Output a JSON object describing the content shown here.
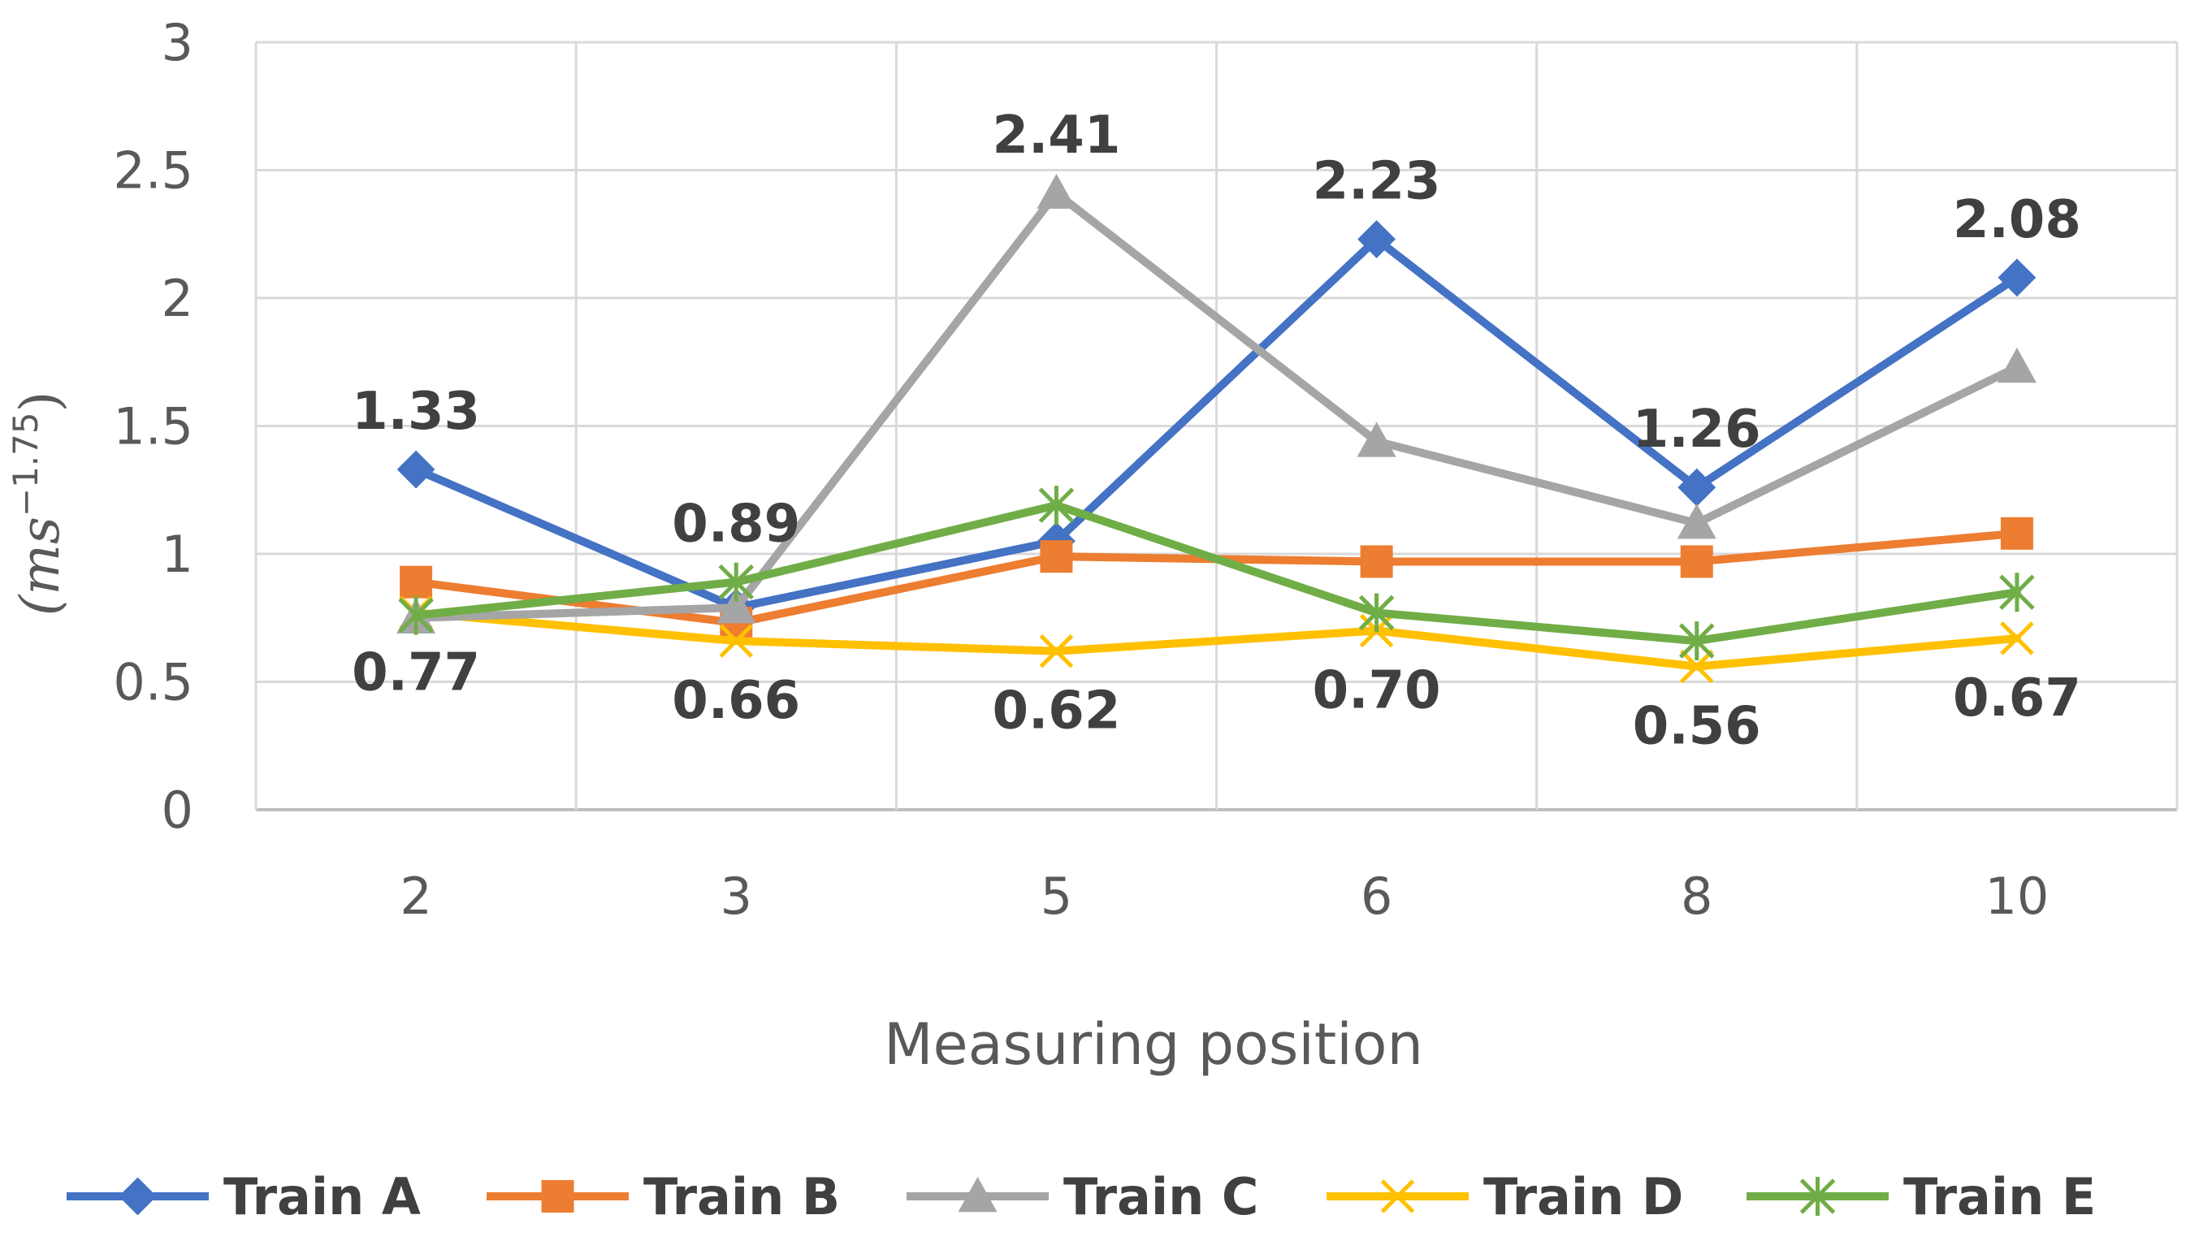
{
  "chart_data": {
    "type": "line",
    "title": "",
    "xlabel": "Measuring position",
    "ylabel": {
      "main": "(ms",
      "exponent": "−1.75",
      "close": ")"
    },
    "categories": [
      "2",
      "3",
      "5",
      "6",
      "8",
      "10"
    ],
    "ylim": [
      0,
      3
    ],
    "yticks": [
      0,
      0.5,
      1,
      1.5,
      2,
      2.5,
      3
    ],
    "ytick_labels": [
      "0",
      "0.5",
      "1",
      "1.5",
      "2",
      "2.5",
      "3"
    ],
    "grid": true,
    "legend_position": "bottom",
    "series": [
      {
        "name": "Train A",
        "color": "#4472C4",
        "marker": "diamond",
        "values": [
          1.33,
          0.79,
          1.05,
          2.23,
          1.26,
          2.08
        ]
      },
      {
        "name": "Train B",
        "color": "#ED7D31",
        "marker": "square",
        "values": [
          0.89,
          0.73,
          0.99,
          0.97,
          0.97,
          1.08
        ]
      },
      {
        "name": "Train C",
        "color": "#A5A5A5",
        "marker": "triangle",
        "values": [
          0.75,
          0.79,
          2.41,
          1.44,
          1.12,
          1.73
        ]
      },
      {
        "name": "Train D",
        "color": "#FFC000",
        "marker": "x",
        "values": [
          0.77,
          0.66,
          0.62,
          0.7,
          0.56,
          0.67
        ]
      },
      {
        "name": "Train E",
        "color": "#70AD47",
        "marker": "star",
        "values": [
          0.76,
          0.89,
          1.19,
          0.77,
          0.66,
          0.85
        ]
      }
    ],
    "annotations": [
      {
        "text": "1.33",
        "x": "2",
        "series": "Train A",
        "place": "above"
      },
      {
        "text": "0.89",
        "x": "3",
        "series": "Train E",
        "place": "above"
      },
      {
        "text": "2.41",
        "x": "5",
        "series": "Train C",
        "place": "above"
      },
      {
        "text": "2.23",
        "x": "6",
        "series": "Train A",
        "place": "above"
      },
      {
        "text": "1.26",
        "x": "8",
        "series": "Train A",
        "place": "above"
      },
      {
        "text": "2.08",
        "x": "10",
        "series": "Train A",
        "place": "above"
      },
      {
        "text": "0.77",
        "x": "2",
        "series": "Train D",
        "place": "below"
      },
      {
        "text": "0.66",
        "x": "3",
        "series": "Train D",
        "place": "below"
      },
      {
        "text": "0.62",
        "x": "5",
        "series": "Train D",
        "place": "below"
      },
      {
        "text": "0.70",
        "x": "6",
        "series": "Train D",
        "place": "below"
      },
      {
        "text": "0.56",
        "x": "8",
        "series": "Train D",
        "place": "below"
      },
      {
        "text": "0.67",
        "x": "10",
        "series": "Train D",
        "place": "below"
      }
    ]
  }
}
